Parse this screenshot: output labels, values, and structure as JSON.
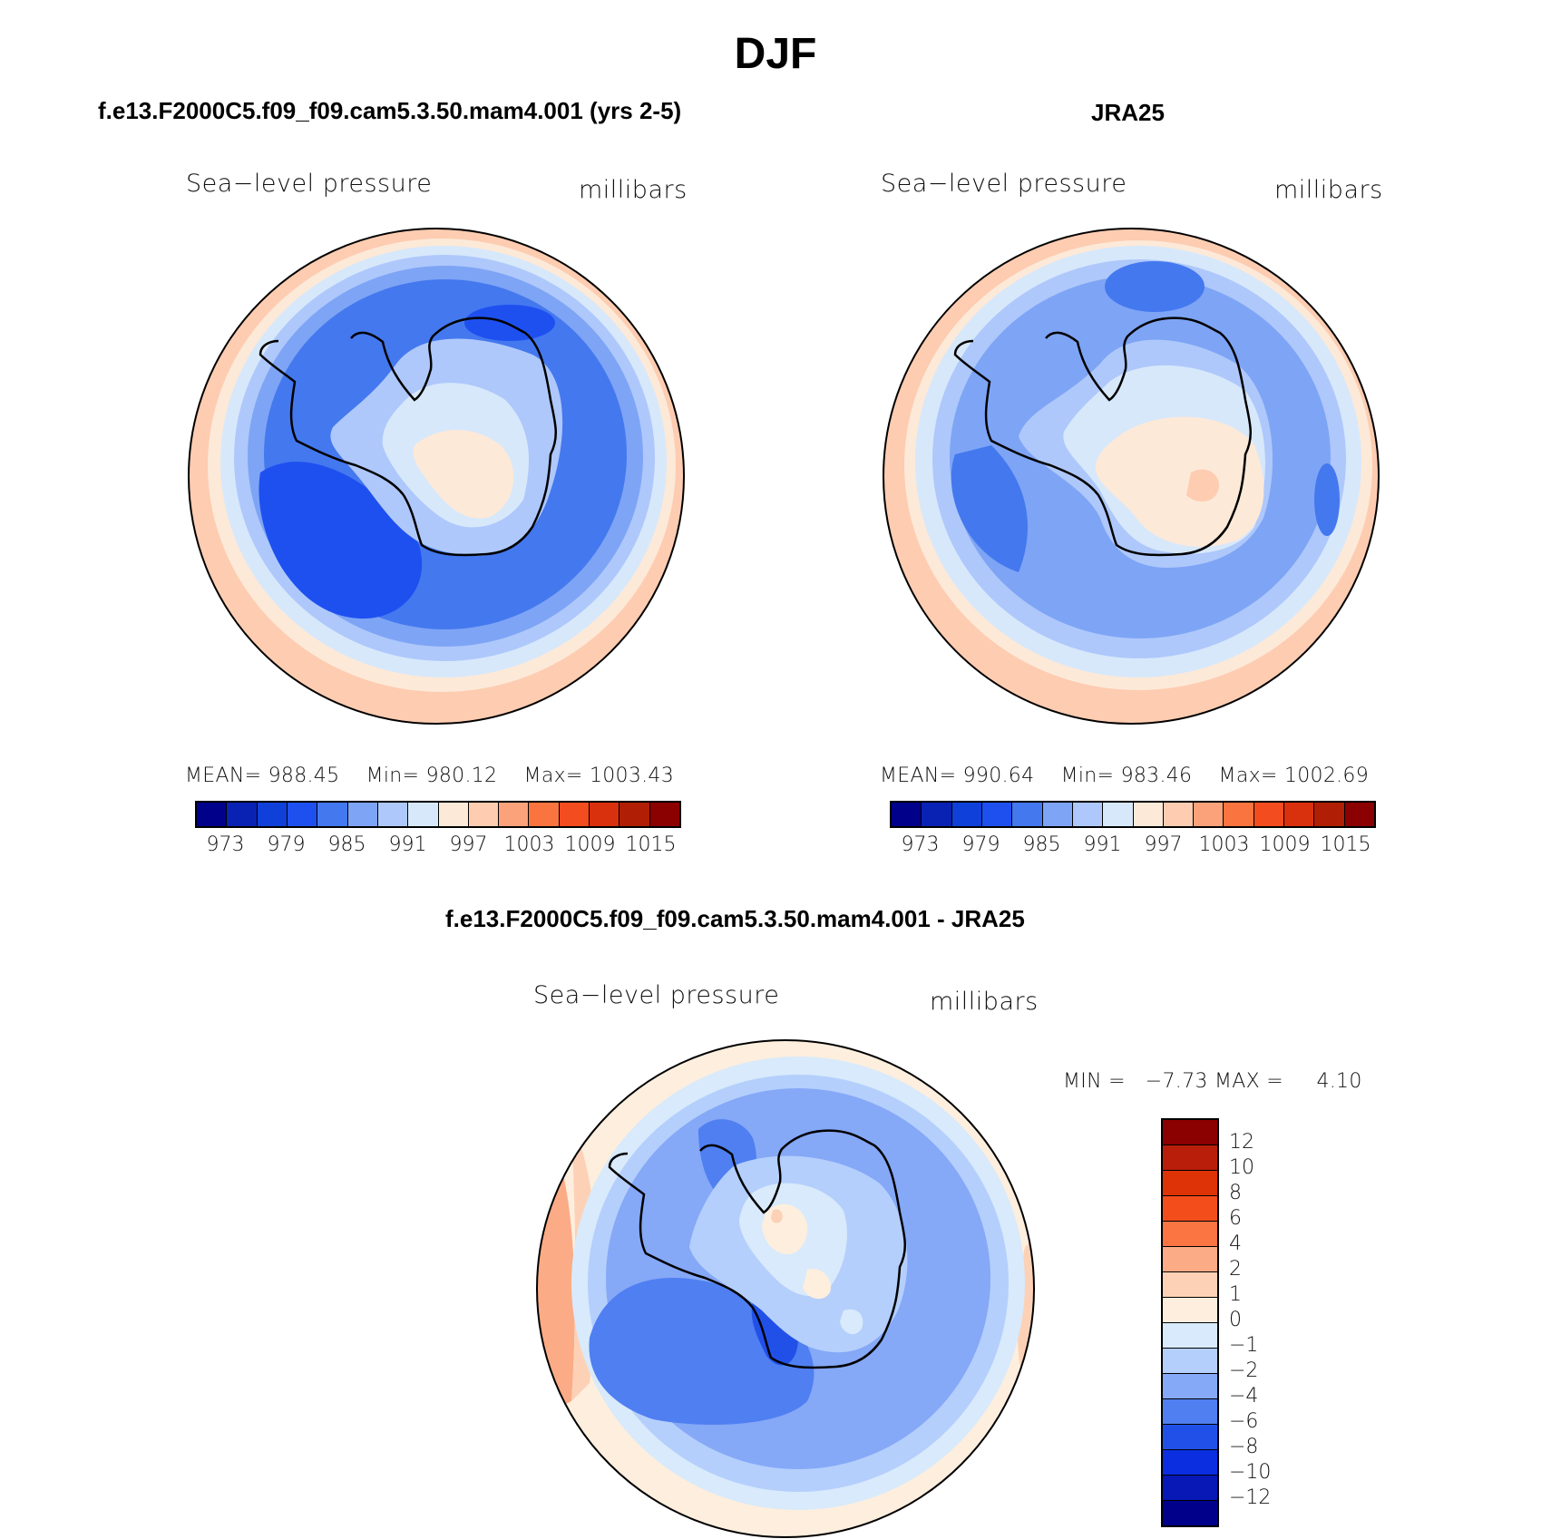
{
  "title": "DJF",
  "colors": {
    "abs_scale": [
      "#00008b",
      "#0a22b4",
      "#0f40d9",
      "#1e50f0",
      "#4478ee",
      "#7ea4f5",
      "#aec8fb",
      "#d7e8fb",
      "#fde9d8",
      "#fdccb1",
      "#fba27b",
      "#f9743e",
      "#f24c1f",
      "#d9300d",
      "#b01f05",
      "#8b0000"
    ],
    "diff_scale": [
      "#8b0000",
      "#b81e0a",
      "#de3306",
      "#f34d1c",
      "#fb7542",
      "#fbab85",
      "#fdd1b6",
      "#fdeede",
      "#d8eafb",
      "#b4cffc",
      "#85a8f7",
      "#4f7ff1",
      "#2150e9",
      "#0a2ee0",
      "#0718b6",
      "#00008b"
    ]
  },
  "panel_left": {
    "title": "f.e13.F2000C5.f09_f09.cam5.3.50.mam4.001 (yrs 2-5)",
    "variable": "Sea−level pressure",
    "units": "millibars",
    "stats": {
      "mean_label": "MEAN=",
      "mean": "988.45",
      "min_label": "Min=",
      "min": "980.12",
      "max_label": "Max=",
      "max": "1003.43"
    },
    "colorbar_labels": [
      "973",
      "979",
      "985",
      "991",
      "997",
      "1003",
      "1009",
      "1015"
    ]
  },
  "panel_right": {
    "title": "JRA25",
    "variable": "Sea−level pressure",
    "units": "millibars",
    "stats": {
      "mean_label": "MEAN=",
      "mean": "990.64",
      "min_label": "Min=",
      "min": "983.46",
      "max_label": "Max=",
      "max": "1002.69"
    },
    "colorbar_labels": [
      "973",
      "979",
      "985",
      "991",
      "997",
      "1003",
      "1009",
      "1015"
    ]
  },
  "panel_diff": {
    "title": "f.e13.F2000C5.f09_f09.cam5.3.50.mam4.001 - JRA25",
    "variable": "Sea−level pressure",
    "units": "millibars",
    "minmax": {
      "min_label": "MIN =",
      "min": "−7.73",
      "max_label": "MAX =",
      "max": "4.10"
    },
    "colorbar_labels": [
      "12",
      "10",
      "8",
      "6",
      "4",
      "2",
      "1",
      "0",
      "−1",
      "−2",
      "−4",
      "−6",
      "−8",
      "−10",
      "−12"
    ]
  }
}
